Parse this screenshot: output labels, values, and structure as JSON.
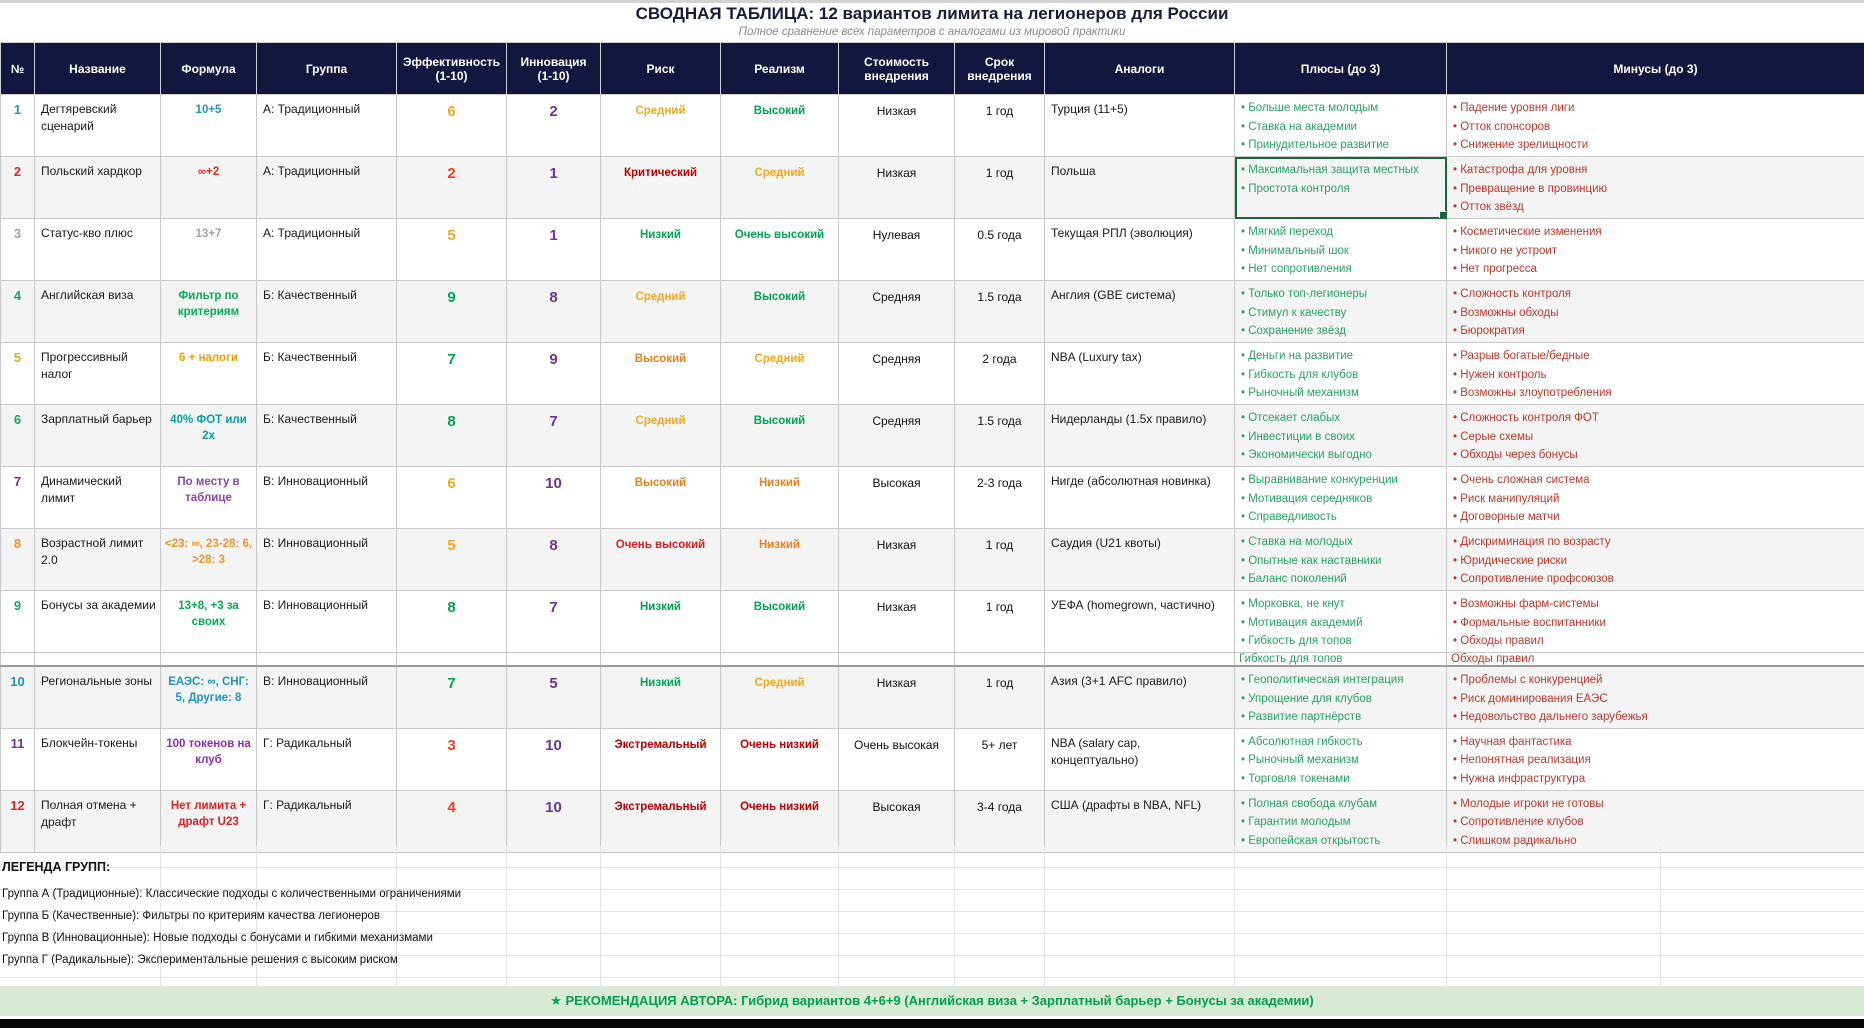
{
  "title": "СВОДНАЯ ТАБЛИЦА: 12 вариантов лимита на легионеров для России",
  "subtitle": "Полное сравнение всех параметров с аналогами из мировой практики",
  "columns": [
    {
      "label": "№"
    },
    {
      "label": "Название"
    },
    {
      "label": "Формула"
    },
    {
      "label": "Группа"
    },
    {
      "label": "Эффективность\n(1-10)"
    },
    {
      "label": "Инновация\n(1-10)"
    },
    {
      "label": "Риск"
    },
    {
      "label": "Реализм"
    },
    {
      "label": "Стоимость\nвнедрения"
    },
    {
      "label": "Срок\nвнедрения"
    },
    {
      "label": "Аналоги"
    },
    {
      "label": "Плюсы (до 3)"
    },
    {
      "label": "Минусы (до 3)"
    }
  ],
  "rows": [
    {
      "num": "1",
      "num_color": "#1d93cc",
      "name": "Дегтяревский сценарий",
      "formula": "10+5",
      "formula_color": "#1d93cc",
      "group": "А: Традиционный",
      "eff": "6",
      "eff_color": "#f5a81c",
      "innov": "2",
      "innov_color": "#7030a0",
      "risk": "Средний",
      "risk_color": "#f5a81c",
      "realism": "Высокий",
      "realism_color": "#00a551",
      "cost": "Низкая",
      "term": "1 год",
      "analog": "Турция (11+5)",
      "pros": [
        "Больше места молодым",
        "Ставка на академии",
        "Принудительное развитие"
      ],
      "cons": [
        "Падение уровня лиги",
        "Отток спонсоров",
        "Снижение зрелищности"
      ]
    },
    {
      "num": "2",
      "num_color": "#e8281e",
      "name": "Польский хардкор",
      "formula": "∞+2",
      "formula_color": "#e8281e",
      "group": "А: Традиционный",
      "eff": "2",
      "eff_color": "#fa3c1e",
      "innov": "1",
      "innov_color": "#7030a0",
      "risk": "Критический",
      "risk_color": "#c00000",
      "realism": "Средний",
      "realism_color": "#f5a81c",
      "cost": "Низкая",
      "term": "1 год",
      "analog": "Польша",
      "pros": [
        "Максимальная защита местных",
        "Простота контроля"
      ],
      "cons": [
        "Катастрофа для уровня",
        "Превращение в провинцию",
        "Отток звёзд"
      ]
    },
    {
      "num": "3",
      "num_color": "#a3a3a3",
      "name": "Статус-кво плюс",
      "formula": "13+7",
      "formula_color": "#a3a3a3",
      "group": "А: Традиционный",
      "eff": "5",
      "eff_color": "#f5a81c",
      "innov": "1",
      "innov_color": "#7030a0",
      "risk": "Низкий",
      "risk_color": "#00a551",
      "realism": "Очень высокий",
      "realism_color": "#00a551",
      "cost": "Нулевая",
      "term": "0.5 года",
      "analog": "Текущая РПЛ (эволюция)",
      "pros": [
        "Мягкий переход",
        "Минимальный шок",
        "Нет сопротивления"
      ],
      "cons": [
        "Косметические изменения",
        "Никого не устроит",
        "Нет прогресса"
      ]
    },
    {
      "num": "4",
      "num_color": "#17a85b",
      "name": "Английская виза",
      "formula": "Фильтр по критериям",
      "formula_color": "#00b050",
      "group": "Б: Качественный",
      "eff": "9",
      "eff_color": "#00a551",
      "innov": "8",
      "innov_color": "#7030a0",
      "risk": "Средний",
      "risk_color": "#f5a81c",
      "realism": "Высокий",
      "realism_color": "#00a551",
      "cost": "Средняя",
      "term": "1.5 года",
      "analog": "Англия (GBE система)",
      "pros": [
        "Только топ-легионеры",
        "Стимул к качеству",
        "Сохранение звёзд"
      ],
      "cons": [
        "Сложность контроля",
        "Возможны обходы",
        "Бюрократия"
      ]
    },
    {
      "num": "5",
      "num_color": "#f2a71d",
      "name": "Прогрессивный налог",
      "formula": "6 + налоги",
      "formula_color": "#f2a000",
      "group": "Б: Качественный",
      "eff": "7",
      "eff_color": "#00a551",
      "innov": "9",
      "innov_color": "#7030a0",
      "risk": "Высокий",
      "risk_color": "#e8821e",
      "realism": "Средний",
      "realism_color": "#f5a81c",
      "cost": "Средняя",
      "term": "2 года",
      "analog": "NBA (Luxury tax)",
      "pros": [
        "Деньги на развитие",
        "Гибкость для клубов",
        "Рыночный механизм"
      ],
      "cons": [
        "Разрыв богатые/бедные",
        "Нужен контроль",
        "Возможны злоупотребления"
      ]
    },
    {
      "num": "6",
      "num_color": "#17a85b",
      "name": "Зарплатный барьер",
      "formula": "40% ФОТ или 2х",
      "formula_color": "#00a3a0",
      "group": "Б: Качественный",
      "eff": "8",
      "eff_color": "#00a551",
      "innov": "7",
      "innov_color": "#7030a0",
      "risk": "Средний",
      "risk_color": "#f5a81c",
      "realism": "Высокий",
      "realism_color": "#00a551",
      "cost": "Средняя",
      "term": "1.5 года",
      "analog": "Нидерланды (1.5x правило)",
      "pros": [
        "Отсекает слабых",
        "Инвестиции в своих",
        "Экономически выгодно"
      ],
      "cons": [
        "Сложность контроля ФОТ",
        "Серые схемы",
        "Обходы через бонусы"
      ]
    },
    {
      "num": "7",
      "num_color": "#7030a0",
      "name": "Динамический лимит",
      "formula": "По месту в таблице",
      "formula_color": "#8e44ad",
      "group": "В: Инновационный",
      "eff": "6",
      "eff_color": "#f5a81c",
      "innov": "10",
      "innov_color": "#7030a0",
      "risk": "Высокий",
      "risk_color": "#e8821e",
      "realism": "Низкий",
      "realism_color": "#e8821e",
      "cost": "Высокая",
      "term": "2-3 года",
      "analog": "Нигде (абсолютная новинка)",
      "pros": [
        "Выравнивание конкуренции",
        "Мотивация середняков",
        "Справедливость"
      ],
      "cons": [
        "Очень сложная система",
        "Риск манипуляций",
        "Договорные матчи"
      ]
    },
    {
      "num": "8",
      "num_color": "#ef9426",
      "name": "Возрастной лимит 2.0",
      "formula": "<23: ∞, 23-28: 6, >28: 3",
      "formula_color": "#ef9426",
      "group": "В: Инновационный",
      "eff": "5",
      "eff_color": "#f5a81c",
      "innov": "8",
      "innov_color": "#7030a0",
      "risk": "Очень высокий",
      "risk_color": "#e02020",
      "realism": "Низкий",
      "realism_color": "#e8821e",
      "cost": "Низкая",
      "term": "1 год",
      "analog": "Саудия (U21 квоты)",
      "pros": [
        "Ставка на молодых",
        "Опытные как наставники",
        "Баланс поколений"
      ],
      "cons": [
        "Дискриминация по возрасту",
        "Юридические риски",
        "Сопротивление профсоюзов"
      ]
    },
    {
      "num": "9",
      "num_color": "#17a85b",
      "name": "Бонусы за академии",
      "formula": "13+8, +3 за своих",
      "formula_color": "#00b050",
      "group": "В: Инновационный",
      "eff": "8",
      "eff_color": "#00a551",
      "innov": "7",
      "innov_color": "#7030a0",
      "risk": "Низкий",
      "risk_color": "#00a551",
      "realism": "Высокий",
      "realism_color": "#00a551",
      "cost": "Низкая",
      "term": "1 год",
      "analog": "УЕФА (homegrown, частично)",
      "pros": [
        "Морковка, не кнут",
        "Мотивация академий",
        "Гибкость для топов"
      ],
      "cons": [
        "Возможны фарм-системы",
        "Формальные воспитанники",
        "Обходы правил"
      ]
    },
    {
      "num": "10",
      "num_color": "#1d93cc",
      "name": "Региональные зоны",
      "formula": "ЕАЭС: ∞, СНГ: 5, Другие: 8",
      "formula_color": "#1d93cc",
      "group": "В: Инновационный",
      "eff": "7",
      "eff_color": "#00a551",
      "innov": "5",
      "innov_color": "#7030a0",
      "risk": "Низкий",
      "risk_color": "#00a551",
      "realism": "Средний",
      "realism_color": "#f5a81c",
      "cost": "Низкая",
      "term": "1 год",
      "analog": "Азия (3+1 AFC правило)",
      "pros": [
        "Геополитическая интеграция",
        "Упрощение для клубов",
        "Развитие партнёрств"
      ],
      "cons": [
        "Проблемы с конкуренцией",
        "Риск доминирования ЕАЭС",
        "Недовольство дальнего зарубежья"
      ]
    },
    {
      "num": "11",
      "num_color": "#7030a0",
      "name": "Блокчейн-токены",
      "formula": "100 токенов на клуб",
      "formula_color": "#8e2dc0",
      "group": "Г: Радикальный",
      "eff": "3",
      "eff_color": "#fa3c1e",
      "innov": "10",
      "innov_color": "#7030a0",
      "risk": "Экстремальный",
      "risk_color": "#c00000",
      "realism": "Очень низкий",
      "realism_color": "#c00000",
      "cost": "Очень высокая",
      "term": "5+ лет",
      "analog": "NBA (salary cap, концептуально)",
      "pros": [
        "Абсолютная гибкость",
        "Рыночный механизм",
        "Торговля токенами"
      ],
      "cons": [
        "Научная фантастика",
        "Непонятная реализация",
        "Нужна инфраструктура"
      ]
    },
    {
      "num": "12",
      "num_color": "#e8281e",
      "name": "Полная отмена + драфт",
      "formula": "Нет лимита + драфт U23",
      "formula_color": "#e02020",
      "group": "Г: Радикальный",
      "eff": "4",
      "eff_color": "#fa3c1e",
      "innov": "10",
      "innov_color": "#7030a0",
      "risk": "Экстремальный",
      "risk_color": "#c00000",
      "realism": "Очень низкий",
      "realism_color": "#c00000",
      "cost": "Высокая",
      "term": "3-4 года",
      "analog": "США (драфты в NBA, NFL)",
      "pros": [
        "Полная свобода клубам",
        "Гарантии молодым",
        "Европейская открытость"
      ],
      "cons": [
        "Молодые игроки не готовы",
        "Сопротивление клубов",
        "Слишком радикально"
      ]
    }
  ],
  "selection": {
    "row_num": "2",
    "column": "pros"
  },
  "clipped_row": {
    "after_num": "9",
    "pros_fragment": "Гибкость для топов",
    "cons_fragment": "Обходы правил"
  },
  "legend": {
    "heading": "ЛЕГЕНДА ГРУПП:",
    "items": [
      "Группа А (Традиционные): Классические подходы с количественными ограничениями",
      "Группа Б (Качественные): Фильтры по критериям качества легионеров",
      "Группа В (Инновационные): Новые подходы с бонусами и гибкими механизмами",
      "Группа Г (Радикальные): Экспериментальные решения с высоким риском"
    ]
  },
  "recommendation": "★ РЕКОМЕНДАЦИЯ АВТОРА: Гибрид вариантов 4+6+9 (Английская виза + Зарплатный барьер + Бонусы за академии)",
  "colors": {
    "header_bg": "#12173f",
    "pros_text": "#27a465",
    "cons_text": "#c0392b",
    "selection_border": "#18693a",
    "recommendation_bg": "#d8ead3",
    "recommendation_text": "#00a14e"
  }
}
